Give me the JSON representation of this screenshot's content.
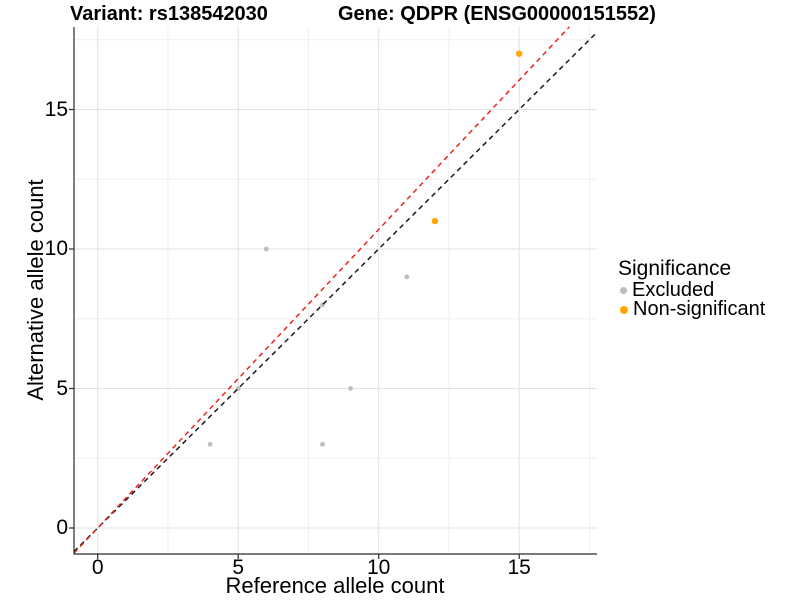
{
  "title_variant": "Variant: rs138542030",
  "title_gene": "Gene: QDPR (ENSG00000151552)",
  "chart_data": {
    "type": "scatter",
    "xlabel": "Reference allele count",
    "ylabel": "Alternative allele count",
    "xticks": [
      0,
      5,
      10,
      15
    ],
    "yticks": [
      0,
      5,
      10,
      15
    ],
    "x_minor": [
      2.5,
      7.5,
      12.5,
      17.5
    ],
    "y_minor": [
      2.5,
      7.5,
      12.5,
      17.5
    ],
    "xlim": [
      -0.843,
      17.77
    ],
    "ylim": [
      -0.932,
      17.96
    ],
    "grid": "major+minor",
    "legend_position": "right",
    "series": [
      {
        "name": "Excluded",
        "color": "#bdbdbd",
        "radius": 2.4,
        "points": [
          [
            4,
            3
          ],
          [
            5,
            5
          ],
          [
            6,
            10
          ],
          [
            8,
            3
          ],
          [
            8,
            8
          ],
          [
            9,
            5
          ],
          [
            11,
            9
          ]
        ]
      },
      {
        "name": "Non-significant",
        "color": "#ffa500",
        "radius": 3.2,
        "points": [
          [
            12,
            11
          ],
          [
            15,
            17
          ]
        ]
      }
    ],
    "lines": [
      {
        "name": "identity-line",
        "color": "#1a1a1a",
        "slope": 1.0,
        "intercept": 0,
        "dash": "5 4",
        "width": 1.5
      },
      {
        "name": "fit-line",
        "color": "#e8251f",
        "slope": 1.07,
        "intercept": 0,
        "dash": "5 4",
        "width": 1.5
      }
    ],
    "legend": {
      "title": "Significance",
      "items": [
        {
          "label": "Excluded",
          "color": "#bdbdbd",
          "dot_size": 7
        },
        {
          "label": "Non-significant",
          "color": "#ffa500",
          "dot_size": 8
        }
      ]
    },
    "colors": {
      "axis": "#2a2a2a",
      "grid_major": "#e2e2e2",
      "grid_minor": "#efefef"
    }
  }
}
